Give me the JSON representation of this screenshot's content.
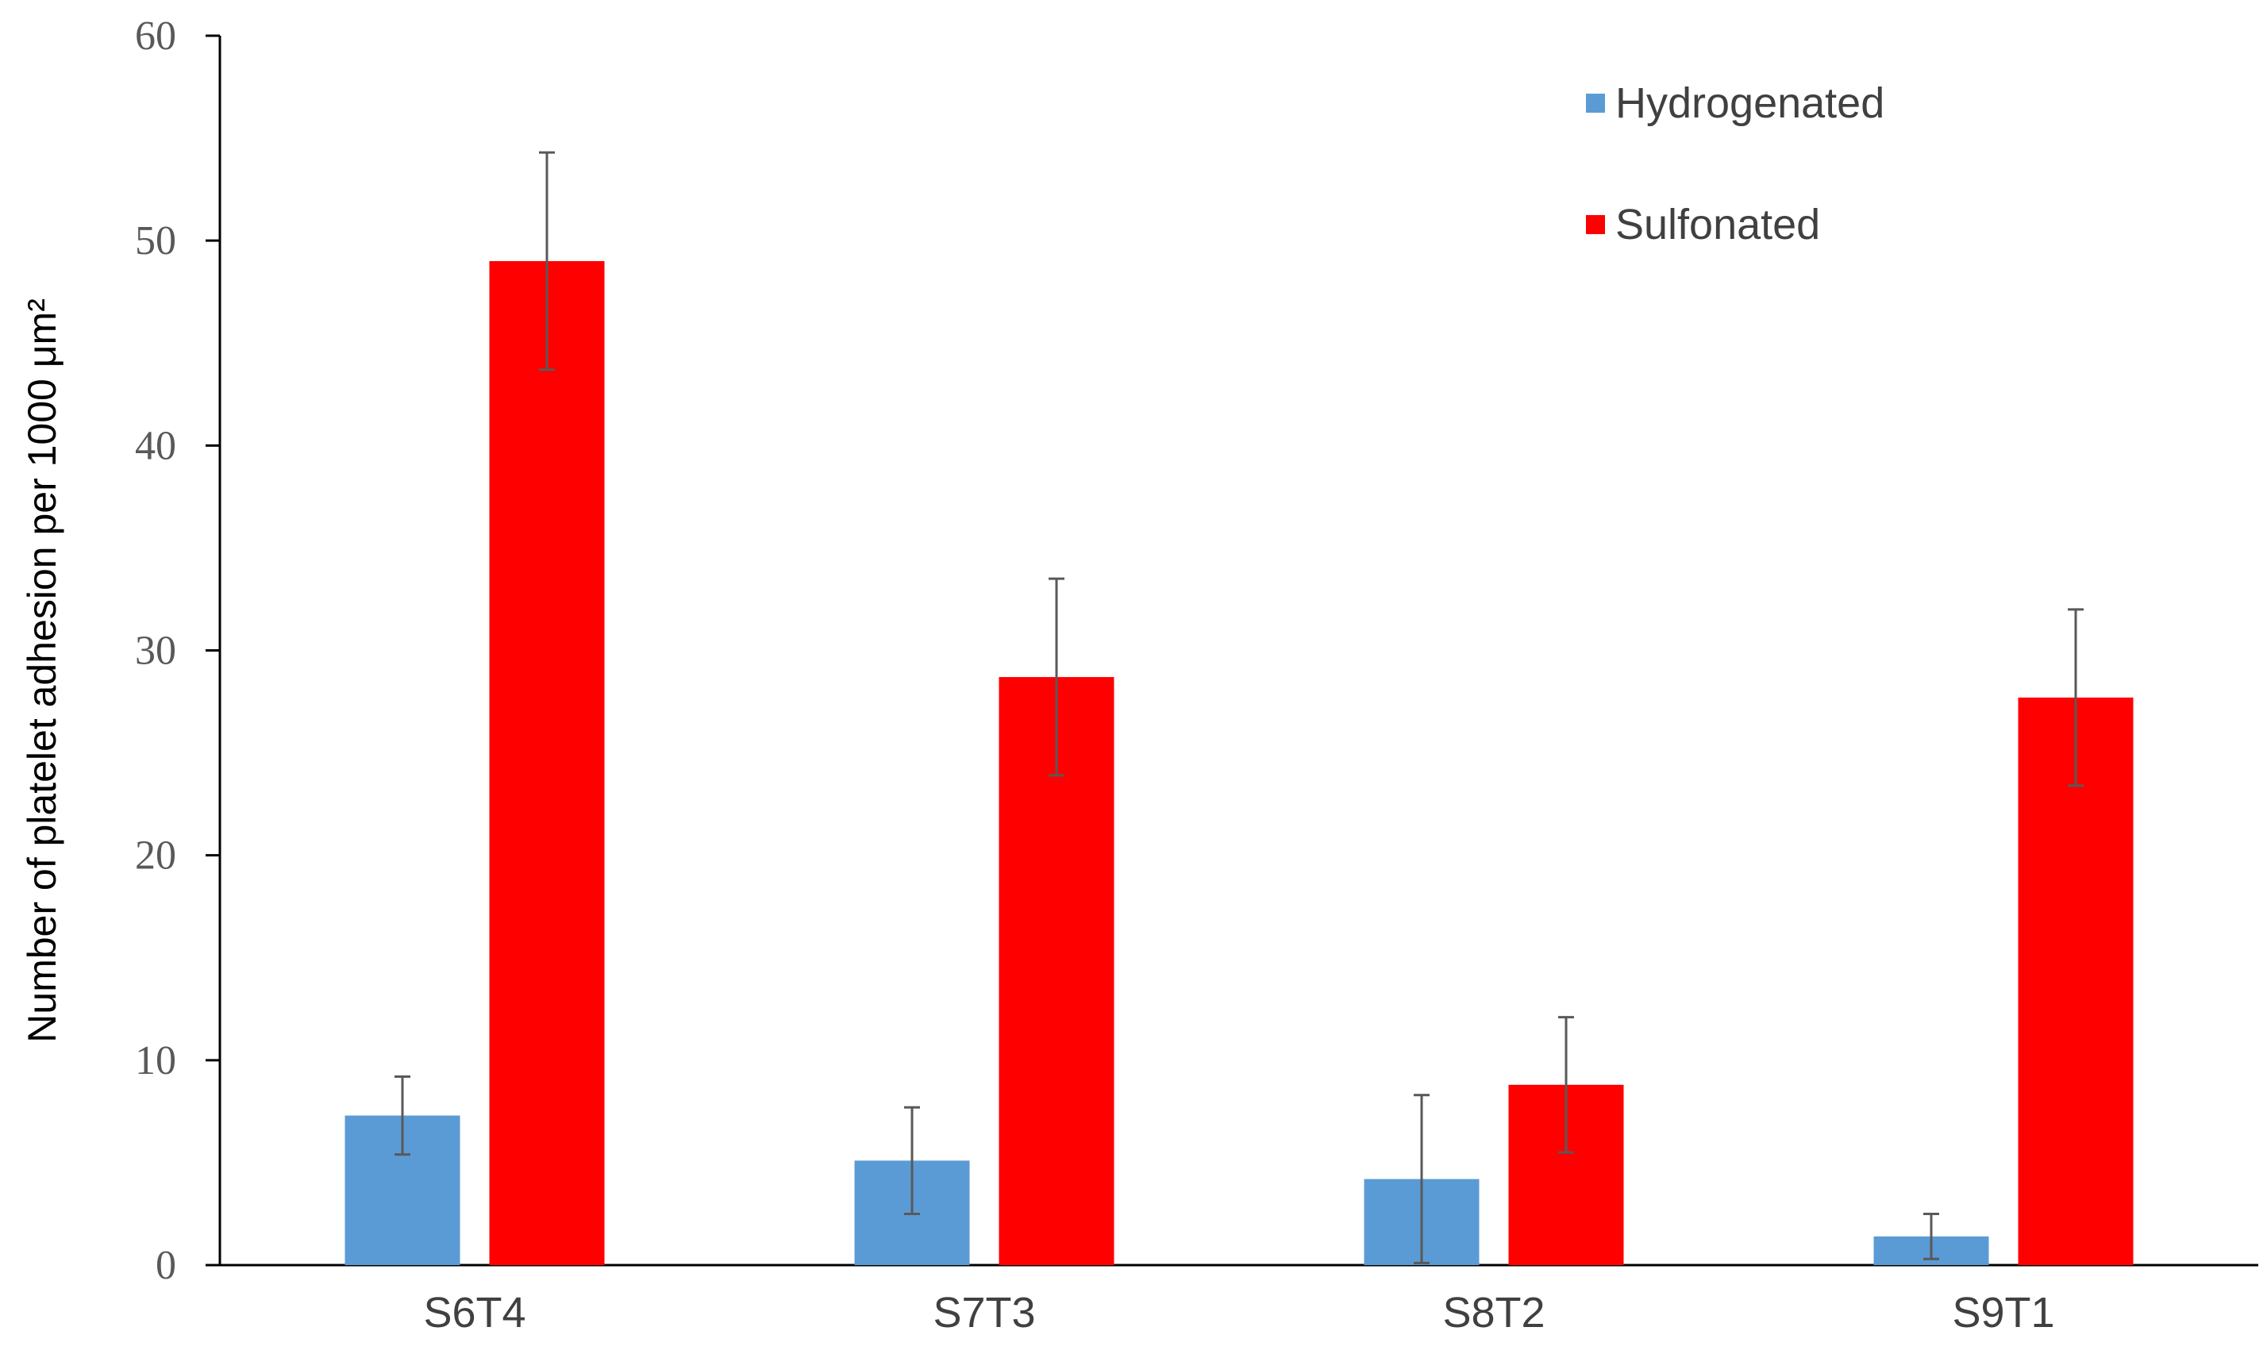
{
  "chart_data": {
    "type": "bar",
    "categories": [
      "S6T4",
      "S7T3",
      "S8T2",
      "S9T1"
    ],
    "series": [
      {
        "name": "Hydrogenated",
        "color": "#5b9bd5",
        "values": [
          7.3,
          5.1,
          4.2,
          1.4
        ],
        "error": [
          1.9,
          2.6,
          4.1,
          1.1
        ]
      },
      {
        "name": "Sulfonated",
        "color": "#ff0000",
        "values": [
          49.0,
          28.7,
          8.8,
          27.7
        ],
        "error": [
          5.3,
          4.8,
          3.3,
          4.3
        ]
      }
    ],
    "ylabel": "Number of platelet adhesion per 1000 μm²",
    "xlabel": "",
    "ylim": [
      0,
      60
    ],
    "yticks": [
      "0",
      "10",
      "20",
      "30",
      "40",
      "50",
      "60"
    ],
    "grid": false,
    "legend": "top-right"
  }
}
